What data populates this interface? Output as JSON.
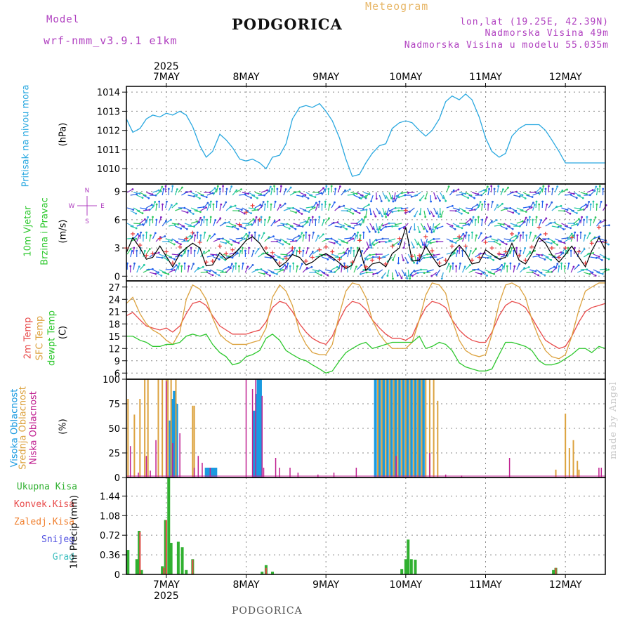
{
  "header": {
    "title": "PODGORICA",
    "meteogram_label": "Meteogram",
    "model_label": "Model",
    "model_name": "wrf-nmm_v3.9.1 e1km",
    "lonlat": "lon,lat (19.25E, 42.39N)",
    "elevation": "Nadmorska Visina 49m",
    "model_elevation": "Nadmorska Visina u modelu 55.035m"
  },
  "footer": {
    "station": "PODGORICA",
    "credit": "made by Angel"
  },
  "colors": {
    "pressure": "#29a8e0",
    "wind_speed": "#000000",
    "wind_gust": "#e83a3a",
    "temp_2m": "#e84a4a",
    "temp_sfc": "#dca23e",
    "dewpoint": "#2ec82e",
    "cloud_high": "#1a9ae0",
    "cloud_mid": "#dca23e",
    "cloud_low": "#c02090",
    "precip_total": "#30b030",
    "precip_conv": "#e84a4a",
    "precip_frozen": "#f08030",
    "snow": "#5050e0",
    "hail": "#40c0c0",
    "compass": "#b040c0"
  },
  "chart_data": [
    {
      "type": "line",
      "panel": "pressure",
      "ylabel": "Pritisak na nivou mora",
      "unit": "(hPa)",
      "ylim": [
        1009.2,
        1014.3
      ],
      "yticks": [
        1010,
        1011,
        1012,
        1013,
        1014
      ],
      "x_days": [
        6.5,
        6.58,
        6.67,
        6.75,
        6.83,
        6.92,
        7.0,
        7.08,
        7.17,
        7.25,
        7.33,
        7.42,
        7.5,
        7.58,
        7.67,
        7.75,
        7.83,
        7.92,
        8.0,
        8.08,
        8.17,
        8.25,
        8.33,
        8.42,
        8.5,
        8.58,
        8.67,
        8.75,
        8.83,
        8.92,
        9.0,
        9.08,
        9.17,
        9.25,
        9.33,
        9.42,
        9.5,
        9.58,
        9.67,
        9.75,
        9.83,
        9.92,
        10.0,
        10.08,
        10.17,
        10.25,
        10.33,
        10.42,
        10.5,
        10.58,
        10.67,
        10.75,
        10.83,
        10.92,
        11.0,
        11.08,
        11.17,
        11.25,
        11.33,
        11.42,
        11.5,
        11.58,
        11.67,
        11.75,
        11.83,
        11.92,
        12.0,
        12.08,
        12.17,
        12.25,
        12.33,
        12.42,
        12.5
      ],
      "series": [
        {
          "name": "Pritisak na nivou mora",
          "values": [
            1012.6,
            1011.9,
            1012.1,
            1012.6,
            1012.8,
            1012.7,
            1012.9,
            1012.8,
            1013.0,
            1012.8,
            1012.2,
            1011.2,
            1010.6,
            1010.9,
            1011.8,
            1011.5,
            1011.1,
            1010.5,
            1010.4,
            1010.5,
            1010.3,
            1010.0,
            1010.6,
            1010.7,
            1011.3,
            1012.6,
            1013.2,
            1013.3,
            1013.2,
            1013.4,
            1013.0,
            1012.5,
            1011.6,
            1010.5,
            1009.6,
            1009.7,
            1010.3,
            1010.8,
            1011.2,
            1011.3,
            1012.1,
            1012.4,
            1012.5,
            1012.4,
            1012.0,
            1011.7,
            1012.0,
            1012.6,
            1013.5,
            1013.8,
            1013.6,
            1013.9,
            1013.6,
            1012.7,
            1011.6,
            1010.9,
            1010.6,
            1010.8,
            1011.7,
            1012.1,
            1012.3,
            1012.3,
            1012.3,
            1012.0,
            1011.5,
            1010.9,
            1010.3,
            1010.3,
            1010.3,
            1010.3,
            1010.3,
            1010.3,
            1010.3
          ]
        }
      ]
    },
    {
      "type": "line",
      "panel": "wind",
      "ylabel": "10m Vjetar",
      "ylabel2": "Brzina i Pravac",
      "unit": "(m/s)",
      "compass": [
        "N",
        "W",
        "E",
        "S"
      ],
      "ylim": [
        -0.5,
        9.8
      ],
      "yticks": [
        0,
        3,
        6,
        9
      ],
      "x_days": [
        6.5,
        6.58,
        6.67,
        6.75,
        6.83,
        6.92,
        7.0,
        7.08,
        7.17,
        7.25,
        7.33,
        7.42,
        7.5,
        7.58,
        7.67,
        7.75,
        7.83,
        7.92,
        8.0,
        8.08,
        8.17,
        8.25,
        8.33,
        8.42,
        8.5,
        8.58,
        8.67,
        8.75,
        8.83,
        8.92,
        9.0,
        9.08,
        9.17,
        9.25,
        9.33,
        9.42,
        9.5,
        9.58,
        9.67,
        9.75,
        9.83,
        9.92,
        10.0,
        10.08,
        10.17,
        10.25,
        10.33,
        10.42,
        10.5,
        10.58,
        10.67,
        10.75,
        10.83,
        10.92,
        11.0,
        11.08,
        11.17,
        11.25,
        11.33,
        11.42,
        11.5,
        11.58,
        11.67,
        11.75,
        11.83,
        11.92,
        12.0,
        12.08,
        12.17,
        12.25,
        12.33,
        12.42,
        12.5
      ],
      "series": [
        {
          "name": "wind speed",
          "values": [
            2.5,
            4.1,
            3.0,
            1.8,
            2.0,
            3.2,
            2.1,
            1.0,
            2.4,
            3.0,
            3.5,
            3.0,
            1.1,
            1.2,
            2.5,
            1.8,
            2.2,
            3.0,
            3.8,
            4.2,
            3.5,
            2.4,
            2.0,
            1.0,
            1.5,
            2.3,
            2.0,
            1.2,
            1.5,
            2.1,
            2.4,
            2.0,
            1.4,
            0.8,
            1.2,
            3.0,
            0.6,
            1.3,
            1.5,
            1.0,
            2.4,
            3.0,
            5.2,
            1.6,
            1.7,
            3.2,
            2.1,
            1.0,
            1.3,
            2.5,
            3.3,
            2.5,
            1.3,
            1.5,
            2.8,
            2.3,
            1.8,
            2.0,
            3.5,
            1.7,
            1.3,
            2.4,
            4.1,
            3.5,
            2.3,
            1.5,
            2.3,
            3.2,
            2.0,
            1.0,
            2.7,
            4.1,
            2.8
          ]
        },
        {
          "name": "wind gust",
          "values": [
            3.0,
            4.5,
            3.3,
            2.2,
            2.4,
            4.0,
            2.6,
            1.4,
            3.1,
            4.0,
            4.6,
            3.6,
            1.5,
            1.6,
            3.2,
            2.4,
            2.8,
            5.5,
            6.8,
            7.5,
            6.0,
            3.0,
            2.5,
            1.4,
            1.9,
            3.0,
            2.6,
            1.6,
            2.0,
            2.8,
            3.1,
            2.6,
            1.8,
            1.0,
            1.5,
            3.8,
            1.0,
            1.7,
            1.9,
            1.3,
            3.2,
            4.0,
            7.0,
            2.1,
            2.2,
            4.2,
            2.7,
            1.4,
            1.7,
            3.2,
            4.2,
            3.2,
            1.7,
            2.0,
            3.6,
            3.0,
            2.4,
            2.6,
            4.5,
            2.2,
            1.7,
            3.1,
            5.2,
            4.5,
            3.0,
            2.0,
            3.0,
            4.1,
            2.6,
            1.4,
            3.5,
            5.2,
            3.6
          ]
        }
      ]
    },
    {
      "type": "line",
      "panel": "temperature",
      "unit": "(C)",
      "ylim": [
        4.5,
        28.5
      ],
      "yticks": [
        6,
        9,
        12,
        15,
        18,
        21,
        24,
        27
      ],
      "x_days": [
        6.5,
        6.58,
        6.67,
        6.75,
        6.83,
        6.92,
        7.0,
        7.08,
        7.17,
        7.25,
        7.33,
        7.42,
        7.5,
        7.58,
        7.67,
        7.75,
        7.83,
        7.92,
        8.0,
        8.08,
        8.17,
        8.25,
        8.33,
        8.42,
        8.5,
        8.58,
        8.67,
        8.75,
        8.83,
        8.92,
        9.0,
        9.08,
        9.17,
        9.25,
        9.33,
        9.42,
        9.5,
        9.58,
        9.67,
        9.75,
        9.83,
        9.92,
        10.0,
        10.08,
        10.17,
        10.25,
        10.33,
        10.42,
        10.5,
        10.58,
        10.67,
        10.75,
        10.83,
        10.92,
        11.0,
        11.08,
        11.17,
        11.25,
        11.33,
        11.42,
        11.5,
        11.58,
        11.67,
        11.75,
        11.83,
        11.92,
        12.0,
        12.08,
        12.17,
        12.25,
        12.33,
        12.42,
        12.5
      ],
      "series": [
        {
          "name": "2m Temp",
          "values": [
            20.0,
            20.8,
            19.0,
            17.5,
            17.0,
            16.5,
            17.0,
            16.0,
            17.5,
            20.5,
            23.0,
            23.5,
            22.5,
            20.0,
            17.5,
            16.5,
            15.5,
            15.5,
            15.5,
            16.0,
            16.5,
            18.5,
            22.0,
            23.5,
            23.0,
            21.0,
            18.0,
            16.0,
            14.5,
            13.5,
            13.0,
            15.0,
            19.0,
            22.0,
            23.5,
            23.0,
            21.5,
            19.0,
            17.0,
            15.5,
            14.5,
            14.5,
            14.0,
            15.0,
            19.0,
            22.0,
            23.5,
            23.0,
            22.0,
            19.0,
            16.5,
            15.0,
            14.0,
            13.5,
            13.5,
            16.0,
            20.0,
            22.5,
            23.5,
            23.0,
            22.0,
            19.5,
            16.5,
            14.0,
            13.0,
            12.0,
            12.5,
            15.0,
            18.5,
            21.0,
            22.0,
            22.5,
            23.0
          ]
        },
        {
          "name": "SFC Temp",
          "values": [
            23.0,
            24.5,
            20.5,
            18.0,
            16.5,
            15.5,
            14.0,
            13.0,
            16.0,
            24.0,
            27.5,
            26.5,
            24.0,
            19.5,
            15.5,
            14.0,
            13.0,
            13.0,
            13.0,
            13.5,
            14.0,
            17.0,
            24.5,
            27.5,
            26.0,
            22.5,
            16.0,
            13.0,
            11.0,
            10.5,
            10.5,
            13.0,
            20.5,
            26.0,
            28.0,
            27.5,
            24.5,
            19.0,
            15.5,
            13.5,
            12.0,
            12.0,
            12.0,
            13.5,
            19.0,
            25.0,
            28.0,
            27.5,
            25.5,
            19.0,
            14.0,
            11.5,
            10.5,
            10.0,
            10.5,
            15.5,
            23.0,
            27.5,
            28.0,
            27.0,
            24.5,
            19.0,
            14.5,
            11.5,
            10.0,
            9.5,
            10.5,
            15.0,
            21.5,
            26.0,
            27.0,
            28.0,
            28.0
          ]
        },
        {
          "name": "dewpt Temp",
          "values": [
            15.0,
            15.0,
            14.0,
            13.5,
            12.5,
            12.5,
            13.0,
            13.0,
            13.5,
            15.0,
            15.5,
            15.0,
            15.5,
            13.0,
            11.0,
            10.0,
            8.0,
            8.5,
            10.0,
            10.5,
            11.5,
            14.5,
            15.5,
            14.0,
            11.5,
            10.5,
            9.5,
            9.0,
            8.0,
            7.0,
            6.0,
            6.5,
            9.0,
            11.0,
            12.0,
            13.0,
            13.5,
            12.0,
            12.5,
            13.0,
            13.5,
            13.5,
            13.5,
            13.5,
            15.0,
            12.0,
            12.5,
            13.5,
            13.0,
            11.5,
            8.5,
            7.5,
            7.0,
            6.5,
            6.5,
            7.0,
            10.5,
            13.5,
            13.5,
            13.0,
            12.5,
            11.5,
            9.0,
            8.0,
            8.0,
            8.5,
            9.5,
            10.5,
            12.0,
            12.0,
            11.0,
            12.5,
            12.0
          ]
        }
      ]
    },
    {
      "type": "bar",
      "panel": "cloud",
      "unit": "(%)",
      "ylim": [
        0,
        100
      ],
      "yticks": [
        0,
        25,
        50,
        75,
        100
      ],
      "series": [
        {
          "name": "Visoka Oblacnost",
          "x_days": [
            7.05,
            7.08,
            7.1,
            7.13,
            7.5,
            7.53,
            7.55,
            7.58,
            7.6,
            7.62,
            8.1,
            8.13,
            8.15,
            8.18,
            9.62,
            9.67,
            9.72,
            9.77,
            9.82,
            9.87,
            9.92,
            9.97,
            10.02,
            10.07,
            10.12,
            10.17,
            10.22
          ],
          "values": [
            58,
            80,
            88,
            75,
            10,
            10,
            10,
            10,
            10,
            10,
            68,
            85,
            100,
            100,
            100,
            100,
            100,
            100,
            100,
            100,
            100,
            100,
            100,
            100,
            100,
            100,
            100
          ]
        },
        {
          "name": "Srednja Oblacnost",
          "x_days": [
            6.52,
            6.6,
            6.67,
            6.73,
            6.77,
            6.9,
            6.95,
            7.0,
            7.02,
            7.06,
            7.12,
            7.33,
            7.35,
            9.65,
            9.7,
            9.75,
            9.8,
            9.85,
            9.9,
            9.95,
            10.0,
            10.05,
            10.1,
            10.15,
            10.2,
            10.25,
            10.3,
            10.35,
            10.4,
            12.0,
            12.05,
            12.1,
            12.15,
            12.17,
            11.88
          ],
          "values": [
            80,
            64,
            80,
            100,
            100,
            100,
            100,
            100,
            100,
            100,
            100,
            73,
            73,
            100,
            100,
            100,
            100,
            100,
            100,
            100,
            100,
            100,
            100,
            100,
            100,
            100,
            100,
            100,
            78,
            65,
            30,
            38,
            17,
            8,
            8
          ]
        },
        {
          "name": "Niska Oblacnost",
          "x_days": [
            6.55,
            6.65,
            6.75,
            6.8,
            6.87,
            7.0,
            7.08,
            7.17,
            7.35,
            7.4,
            7.45,
            7.55,
            8.0,
            8.08,
            8.12,
            8.2,
            8.22,
            8.37,
            8.42,
            8.55,
            8.65,
            8.9,
            9.1,
            9.38,
            9.88,
            10.3,
            10.5,
            10.7,
            11.3,
            12.42,
            12.45
          ],
          "values": [
            32,
            5,
            22,
            7,
            38,
            98,
            35,
            45,
            10,
            22,
            15,
            10,
            100,
            90,
            100,
            83,
            10,
            20,
            10,
            10,
            5,
            3,
            5,
            10,
            22,
            25,
            3,
            2,
            20,
            10,
            10
          ]
        }
      ]
    },
    {
      "type": "bar",
      "panel": "precipitation",
      "unit": "1hr Precip (mm)",
      "ylim": [
        0,
        1.78
      ],
      "yticks": [
        0,
        0.36,
        0.72,
        1.08,
        1.44
      ],
      "series": [
        {
          "name": "Ukupna Kisa",
          "x_days": [
            6.52,
            6.63,
            6.66,
            6.69,
            6.95,
            6.99,
            7.03,
            7.06,
            7.15,
            7.2,
            7.25,
            7.33,
            8.2,
            8.25,
            8.33,
            9.95,
            10.0,
            10.03,
            10.07,
            10.12,
            11.85,
            11.88
          ],
          "values": [
            0.45,
            0.28,
            0.8,
            0.08,
            0.15,
            1.0,
            1.78,
            0.58,
            0.6,
            0.5,
            0.08,
            0.28,
            0.05,
            0.17,
            0.05,
            0.1,
            0.28,
            0.64,
            0.28,
            0.27,
            0.08,
            0.12
          ]
        },
        {
          "name": "Konvek.Kisa",
          "x_days": [
            6.67,
            6.97,
            7.0,
            7.33,
            8.25,
            11.88
          ],
          "values": [
            0.78,
            0.12,
            1.0,
            0.27,
            0.12,
            0.12
          ]
        }
      ]
    }
  ],
  "axes": {
    "top_year": "2025",
    "bottom_year": "2025",
    "day_labels": [
      "7MAY",
      "8MAY",
      "9MAY",
      "10MAY",
      "11MAY",
      "12MAY"
    ]
  },
  "labels": {
    "wind_l1": "10m Vjetar",
    "wind_l2": "Brzina i Pravac",
    "temp_l1": "2m Temp",
    "temp_l2": "SFC Temp",
    "temp_l3": "dewpt Temp",
    "cloud_l1": "Visoka Oblacnost",
    "cloud_l2": "Srednja Oblacnost",
    "cloud_l3": "Niska Oblacnost",
    "precip_l1": "Ukupna Kisa",
    "precip_l2": "Konvek.Kisa",
    "precip_l3": "Zaledj.Kisa",
    "precip_l4": "Snijeg",
    "precip_l5": "Grad",
    "hpa": "(hPa)",
    "ms": "(m/s)",
    "c": "(C)",
    "pct": "(%)",
    "mm": "1hr Precip (mm)"
  }
}
